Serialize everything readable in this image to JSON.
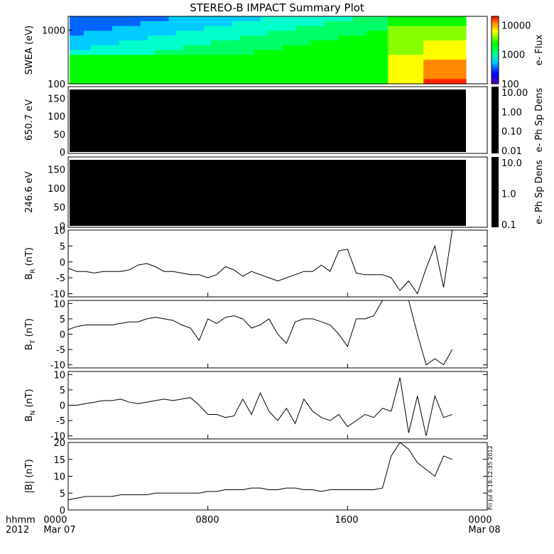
{
  "title": "STEREO-B IMPACT Summary Plot",
  "footer": {
    "left_line1": "hhmm",
    "left_line2": "2012",
    "ticks": [
      "0000",
      "0800",
      "1600",
      "0000"
    ],
    "dates": [
      "Mar 07",
      "Mar 08"
    ]
  },
  "timestamp": "Fri Jul  6 18:12:35 2012",
  "chart_data": [
    {
      "type": "heatmap",
      "ylabel": "SWEA (eV)",
      "yscale": "log",
      "ylim": [
        100,
        1800
      ],
      "yticks": [
        "1000",
        "100"
      ],
      "colorbar": {
        "label": "e- Flux",
        "scale": "log",
        "ticks": [
          "10000",
          "1000",
          "100"
        ],
        "range": [
          100,
          20000
        ]
      },
      "grid": false
    },
    {
      "type": "heatmap",
      "ylabel": "650.7 eV",
      "ylim": [
        0,
        175
      ],
      "yticks": [
        "150",
        "100",
        "50",
        "0"
      ],
      "colorbar": {
        "label": "e- Ph Sp Dens",
        "scale": "log",
        "ticks": [
          "10.00",
          "1.00",
          "0.10",
          "0.01"
        ]
      },
      "fill": "black"
    },
    {
      "type": "heatmap",
      "ylabel": "246.6 eV",
      "ylim": [
        0,
        175
      ],
      "yticks": [
        "150",
        "100",
        "50",
        "0"
      ],
      "colorbar": {
        "label": "e- Ph Sp Dens",
        "scale": "log",
        "ticks": [
          "10.0",
          "1.0",
          "0.1"
        ]
      },
      "fill": "black"
    },
    {
      "type": "line",
      "ylabel": "B",
      "ysub": "R",
      "yunit": " (nT)",
      "ylim": [
        -11,
        10
      ],
      "yticks": [
        "10",
        "5",
        "0",
        "-5",
        "-10"
      ],
      "x": [
        0.0,
        0.5,
        1.0,
        1.5,
        2.0,
        2.5,
        3.0,
        3.5,
        4.0,
        4.5,
        5.0,
        5.5,
        6.0,
        6.5,
        7.0,
        7.5,
        8.0,
        8.5,
        9.0,
        9.5,
        10.0,
        10.5,
        11.0,
        11.5,
        12.0,
        12.5,
        13.0,
        13.5,
        14.0,
        14.5,
        15.0,
        15.5,
        16.0,
        16.5,
        17.0,
        17.5,
        18.0,
        18.5,
        19.0,
        19.5,
        20.0,
        20.5,
        21.0,
        21.5,
        22.0
      ],
      "y": [
        -2,
        -3,
        -3,
        -3.5,
        -3,
        -3,
        -3,
        -2.5,
        -1,
        -0.5,
        -1.5,
        -3,
        -3,
        -3.5,
        -4,
        -4,
        -5,
        -4,
        -1.5,
        -2.5,
        -4.5,
        -3,
        -4,
        -5,
        -6,
        -5,
        -4,
        -3,
        -3,
        -1,
        -3,
        3.5,
        4,
        -3.5,
        -4,
        -4,
        -4,
        -5,
        -9,
        -6,
        -10,
        -2,
        5,
        -8,
        10
      ]
    },
    {
      "type": "line",
      "ylabel": "B",
      "ysub": "T",
      "yunit": " (nT)",
      "ylim": [
        -11,
        11
      ],
      "yticks": [
        "10",
        "5",
        "0",
        "-5",
        "-10"
      ],
      "x": [
        0.0,
        0.5,
        1.0,
        1.5,
        2.0,
        2.5,
        3.0,
        3.5,
        4.0,
        4.5,
        5.0,
        5.5,
        6.0,
        6.5,
        7.0,
        7.5,
        8.0,
        8.5,
        9.0,
        9.5,
        10.0,
        10.5,
        11.0,
        11.5,
        12.0,
        12.5,
        13.0,
        13.5,
        14.0,
        14.5,
        15.0,
        15.5,
        16.0,
        16.5,
        17.0,
        17.5,
        18.0,
        18.5,
        19.0,
        19.5,
        20.0,
        20.5,
        21.0,
        21.5,
        22.0
      ],
      "y": [
        1.5,
        2.5,
        3,
        3,
        3,
        3,
        3.5,
        4,
        4,
        5,
        5.5,
        5,
        4.5,
        3,
        2,
        -2,
        5,
        3.5,
        5.5,
        6,
        5,
        2,
        3,
        5,
        0,
        -3,
        4,
        5,
        5,
        4,
        3,
        0,
        -4,
        5,
        5,
        6,
        11,
        11,
        11,
        11,
        0,
        -10,
        -8,
        -10,
        -5
      ]
    },
    {
      "type": "line",
      "ylabel": "B",
      "ysub": "N",
      "yunit": " (nT)",
      "ylim": [
        -11,
        11
      ],
      "yticks": [
        "10",
        "5",
        "0",
        "-5",
        "-10"
      ],
      "x": [
        0.0,
        0.5,
        1.0,
        1.5,
        2.0,
        2.5,
        3.0,
        3.5,
        4.0,
        4.5,
        5.0,
        5.5,
        6.0,
        6.5,
        7.0,
        7.5,
        8.0,
        8.5,
        9.0,
        9.5,
        10.0,
        10.5,
        11.0,
        11.5,
        12.0,
        12.5,
        13.0,
        13.5,
        14.0,
        14.5,
        15.0,
        15.5,
        16.0,
        16.5,
        17.0,
        17.5,
        18.0,
        18.5,
        19.0,
        19.5,
        20.0,
        20.5,
        21.0,
        21.5,
        22.0
      ],
      "y": [
        0,
        0,
        0.5,
        1,
        1.5,
        1.5,
        2,
        1,
        0.5,
        1,
        1.5,
        2,
        1.5,
        2,
        2.5,
        0,
        -3,
        -3,
        -4,
        -3.5,
        2,
        -3,
        4,
        -2,
        -5,
        -1,
        -6,
        2,
        -2,
        -4,
        -5,
        -3,
        -7,
        -5,
        -3,
        -4,
        -1,
        -2,
        9,
        -9,
        3,
        -10,
        3,
        -4,
        -3
      ]
    },
    {
      "type": "line",
      "ylabel": "|B|",
      "yunit": " (nT)",
      "ylim": [
        0,
        20
      ],
      "yticks": [
        "20",
        "15",
        "10",
        "5",
        "0"
      ],
      "x": [
        0.0,
        0.5,
        1.0,
        1.5,
        2.0,
        2.5,
        3.0,
        3.5,
        4.0,
        4.5,
        5.0,
        5.5,
        6.0,
        6.5,
        7.0,
        7.5,
        8.0,
        8.5,
        9.0,
        9.5,
        10.0,
        10.5,
        11.0,
        11.5,
        12.0,
        12.5,
        13.0,
        13.5,
        14.0,
        14.5,
        15.0,
        15.5,
        16.0,
        16.5,
        17.0,
        17.5,
        18.0,
        18.5,
        19.0,
        19.5,
        20.0,
        20.5,
        21.0,
        21.5,
        22.0
      ],
      "y": [
        3,
        3.5,
        4,
        4,
        4,
        4,
        4.5,
        4.5,
        4.5,
        4.5,
        5,
        5,
        5,
        5,
        5,
        5,
        5.5,
        5.5,
        6,
        6,
        6,
        6.5,
        6.5,
        6,
        6,
        6.5,
        6.5,
        6,
        6,
        5.5,
        6,
        6,
        6,
        6,
        6,
        6,
        6.5,
        16,
        20,
        18,
        14,
        12,
        10,
        16,
        15
      ]
    }
  ]
}
